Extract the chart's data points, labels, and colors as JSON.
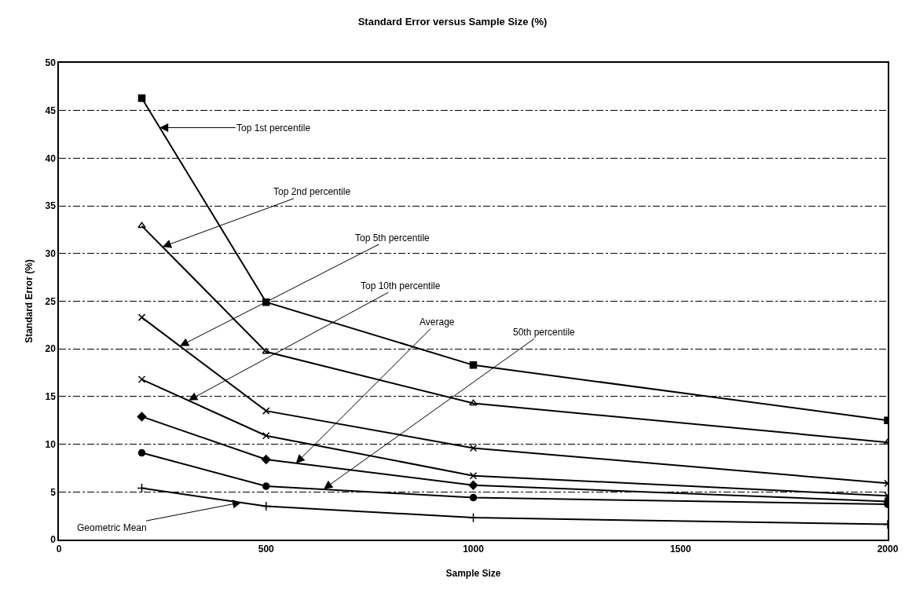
{
  "chart_data": {
    "type": "line",
    "title": "Standard Error versus Sample Size (%)",
    "xlabel": "Sample Size",
    "ylabel": "Standard Error (%)",
    "x": [
      200,
      500,
      1000,
      2000
    ],
    "series": [
      {
        "color": "#000000",
        "marker": "square",
        "values": [
          46.3,
          24.9,
          18.3,
          12.5
        ]
      },
      {
        "color": "#000000",
        "marker": "triangle",
        "values": [
          32.9,
          19.7,
          14.3,
          10.2
        ]
      },
      {
        "color": "#000000",
        "marker": "cross",
        "values": [
          23.3,
          13.5,
          9.6,
          5.9
        ]
      },
      {
        "color": "#000000",
        "marker": "cross",
        "values": [
          16.8,
          10.9,
          6.7,
          4.6
        ]
      },
      {
        "color": "#000000",
        "marker": "diamond",
        "values": [
          12.9,
          8.4,
          5.7,
          4.0
        ]
      },
      {
        "color": "#000000",
        "marker": "circle",
        "values": [
          9.1,
          5.6,
          4.4,
          3.7
        ]
      },
      {
        "color": "#000000",
        "marker": "plus",
        "values": [
          5.4,
          3.5,
          2.3,
          1.6
        ]
      }
    ],
    "annotations": [
      {
        "text": "Top 1st percentile",
        "x": 243,
        "y": 43.2
      },
      {
        "text": "Top 2nd percentile",
        "x": 250,
        "y": 30.7
      },
      {
        "text": "Top 5th percentile",
        "x": 292,
        "y": 20.3
      },
      {
        "text": "Top 10th percentile",
        "x": 313,
        "y": 14.6
      },
      {
        "text": "Average",
        "x": 572,
        "y": 8.0
      },
      {
        "text": "50th percentile",
        "x": 639,
        "y": 5.3
      },
      {
        "text": "Geometric Mean",
        "x": 440,
        "y": 3.9
      }
    ],
    "xlim": [
      0,
      2000
    ],
    "xticks": [
      0,
      500,
      1000,
      1500,
      2000
    ],
    "ylim": [
      0,
      50
    ],
    "yticks": [
      0,
      5,
      10,
      15,
      20,
      25,
      30,
      35,
      40,
      45,
      50
    ],
    "grid": "y",
    "line_style": "solid"
  }
}
